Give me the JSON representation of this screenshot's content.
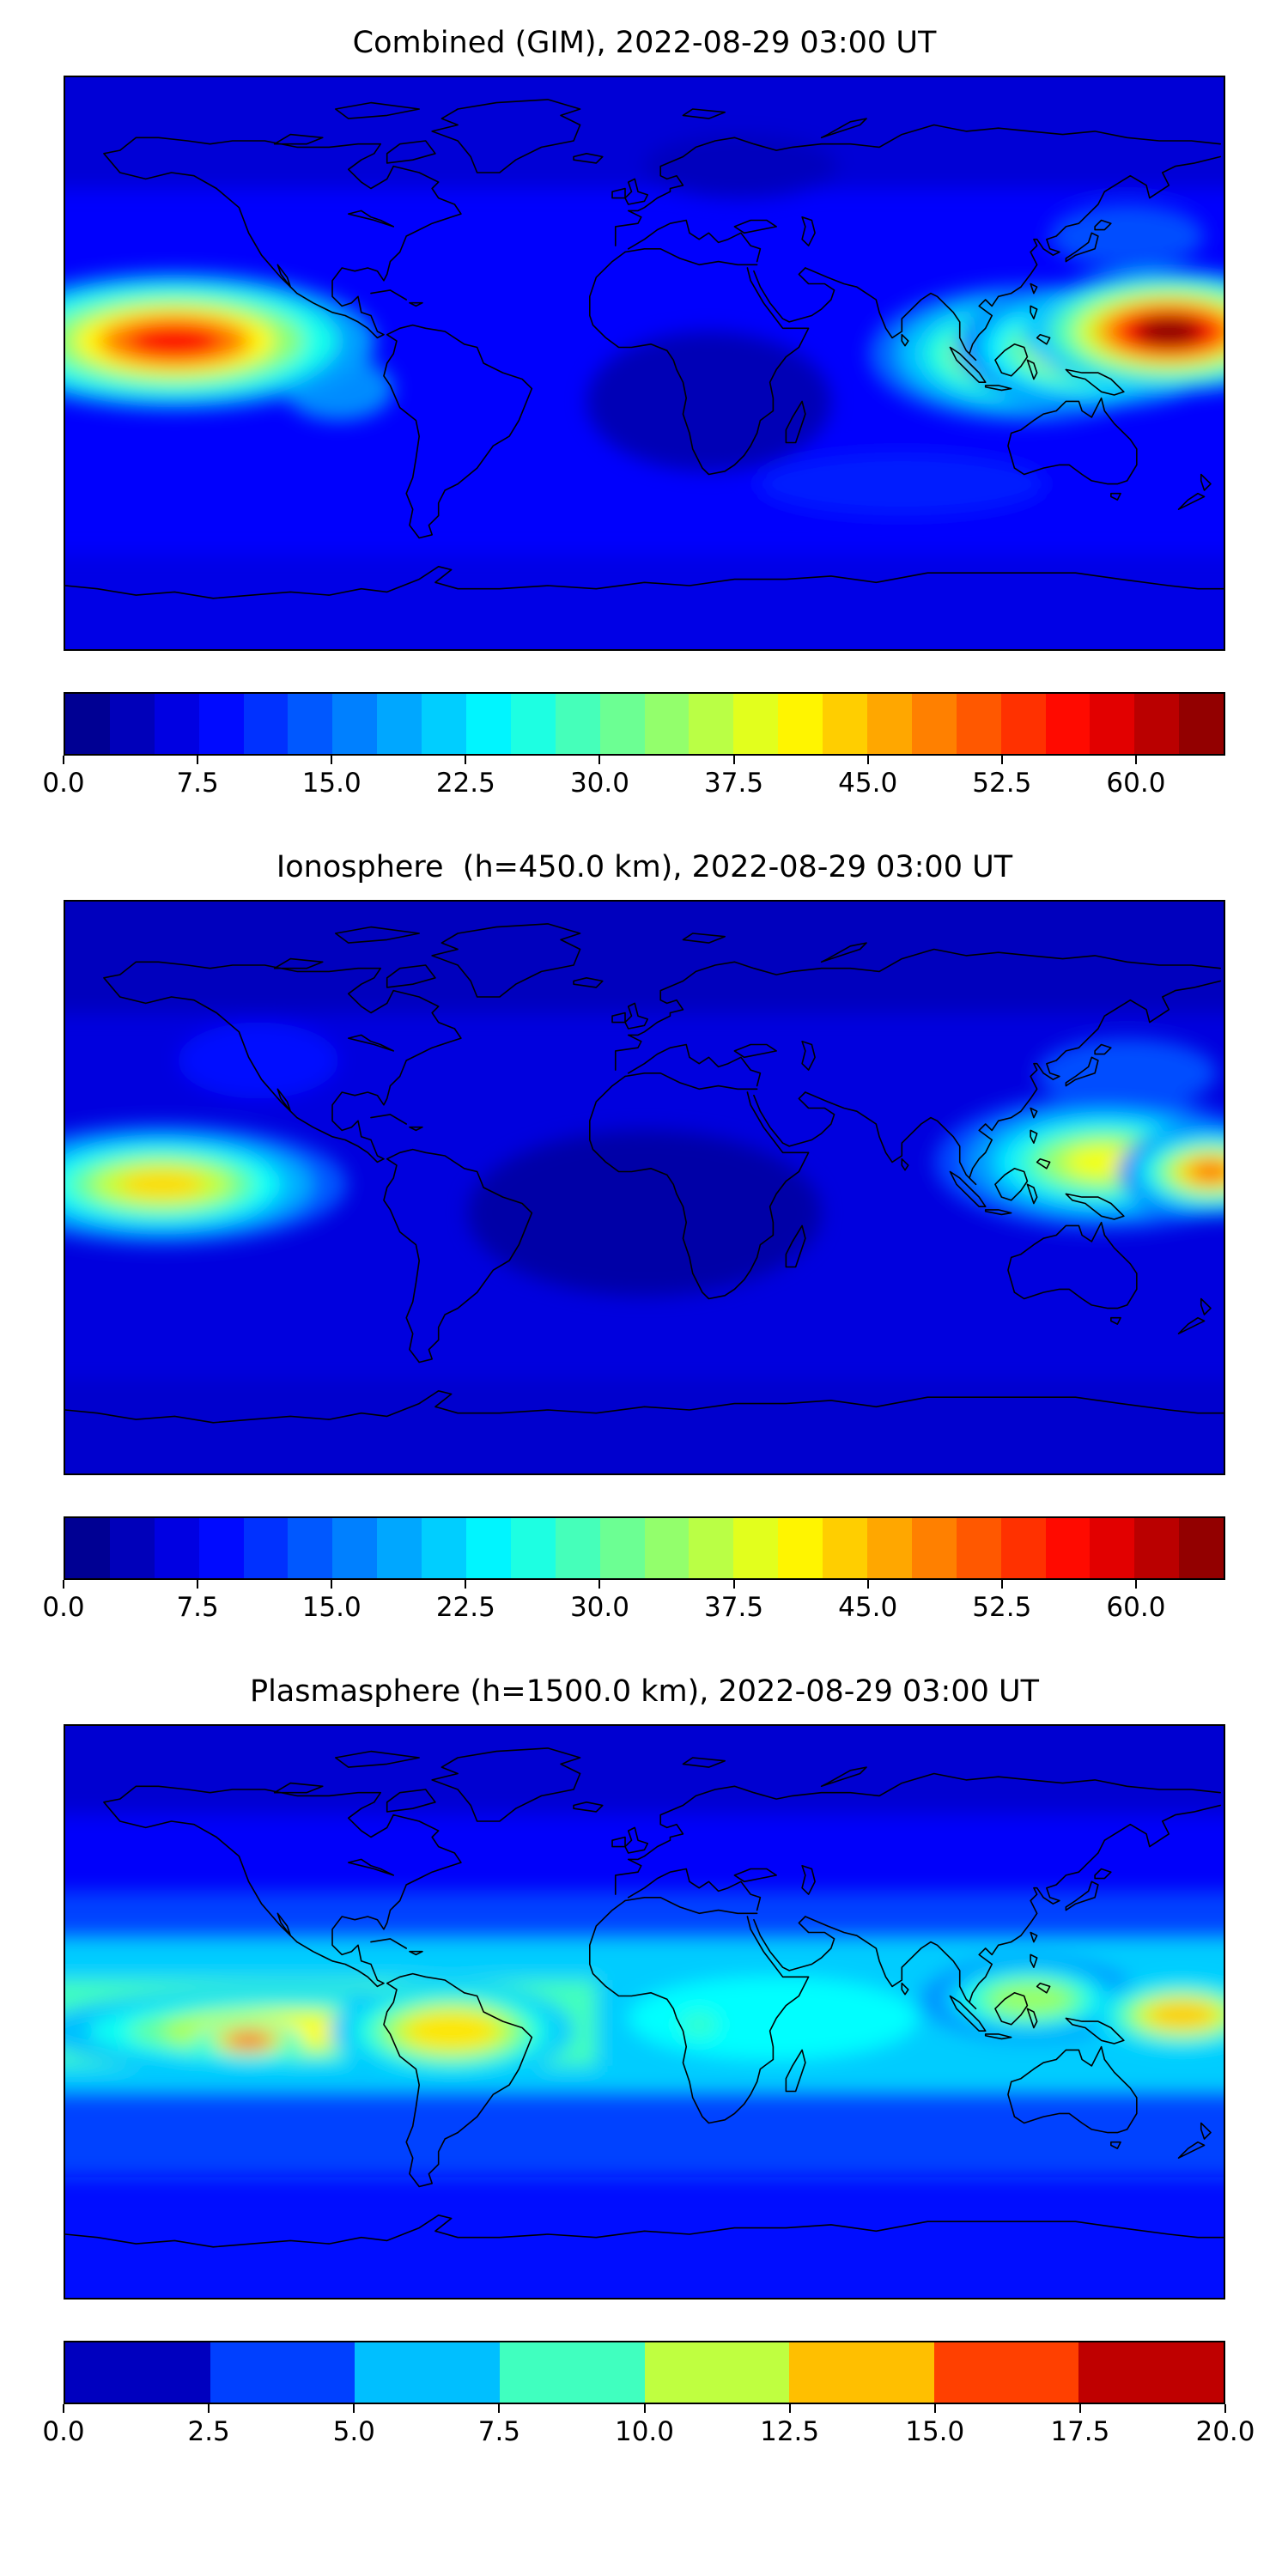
{
  "figure": {
    "background": "#ffffff",
    "coastline_color": "#000000",
    "frame_color": "#000000",
    "palette": {
      "name": "jet",
      "low": "#000080",
      "blue": "#0000ff",
      "cyan": "#00ffff",
      "green": "#7cff79",
      "yellow": "#ffff00",
      "orange": "#ff7f00",
      "red": "#ff0000",
      "high": "#800000"
    }
  },
  "chart_data": [
    {
      "type": "heatmap",
      "title": "Combined (GIM), 2022-08-29 03:00 UT",
      "projection": "equirectangular",
      "lon_range": [
        -180,
        180
      ],
      "lat_range": [
        -90,
        90
      ],
      "colorbar": {
        "vmin": 0.0,
        "vmax": 65.0,
        "level_step": 2.5,
        "tick_values": [
          0.0,
          7.5,
          15.0,
          22.5,
          30.0,
          37.5,
          45.0,
          52.5,
          60.0
        ],
        "tick_labels": [
          "0.0",
          "7.5",
          "15.0",
          "22.5",
          "30.0",
          "37.5",
          "45.0",
          "52.5",
          "60.0"
        ],
        "orientation": "horizontal"
      },
      "map": {
        "background_value": 8,
        "regions": [
          {
            "shape": "rect",
            "lon": [
              -180,
              180
            ],
            "lat": [
              55,
              90
            ],
            "value": 5.5
          },
          {
            "shape": "rect",
            "lon": [
              -180,
              180
            ],
            "lat": [
              -90,
              -60
            ],
            "value": 6.5
          },
          {
            "shape": "ellipse",
            "lon": 20,
            "lat": -12,
            "rx": 38,
            "ry": 22,
            "value": 3.5
          },
          {
            "shape": "ellipse",
            "lon": 30,
            "lat": 62,
            "rx": 30,
            "ry": 10,
            "value": 4
          },
          {
            "shape": "ellipse",
            "lon": -95,
            "lat": -8,
            "rx": 17,
            "ry": 10,
            "value": 17
          },
          {
            "shape": "ellipse",
            "lon": 150,
            "lat": 40,
            "rx": 24,
            "ry": 10,
            "value": 13
          },
          {
            "shape": "ellipse",
            "lon": 80,
            "lat": -38,
            "rx": 45,
            "ry": 10,
            "value": 10
          }
        ],
        "hotspots": [
          {
            "lon": -146,
            "lat": 7,
            "peak": 57,
            "rx": 26,
            "ry": 9
          },
          {
            "lon": 118,
            "lat": 3,
            "peak": 46,
            "rx": 20,
            "ry": 9
          },
          {
            "lon": 140,
            "lat": 5,
            "peak": 52,
            "rx": 18,
            "ry": 8
          },
          {
            "lon": 163,
            "lat": 10,
            "peak": 65,
            "rx": 19,
            "ry": 8
          }
        ]
      }
    },
    {
      "type": "heatmap",
      "title": "Ionosphere  (h=450.0 km), 2022-08-29 03:00 UT",
      "projection": "equirectangular",
      "lon_range": [
        -180,
        180
      ],
      "lat_range": [
        -90,
        90
      ],
      "colorbar": {
        "vmin": 0.0,
        "vmax": 65.0,
        "level_step": 2.5,
        "tick_values": [
          0.0,
          7.5,
          15.0,
          22.5,
          30.0,
          37.5,
          45.0,
          52.5,
          60.0
        ],
        "tick_labels": [
          "0.0",
          "7.5",
          "15.0",
          "22.5",
          "30.0",
          "37.5",
          "45.0",
          "52.5",
          "60.0"
        ],
        "orientation": "horizontal"
      },
      "map": {
        "background_value": 6,
        "regions": [
          {
            "shape": "rect",
            "lon": [
              -180,
              180
            ],
            "lat": [
              55,
              90
            ],
            "value": 4
          },
          {
            "shape": "rect",
            "lon": [
              -180,
              180
            ],
            "lat": [
              -90,
              -60
            ],
            "value": 5
          },
          {
            "shape": "ellipse",
            "lon": 0,
            "lat": -8,
            "rx": 55,
            "ry": 26,
            "value": 2.5
          },
          {
            "shape": "ellipse",
            "lon": 150,
            "lat": 36,
            "rx": 28,
            "ry": 11,
            "value": 13
          },
          {
            "shape": "ellipse",
            "lon": -120,
            "lat": 40,
            "rx": 25,
            "ry": 12,
            "value": 9
          }
        ],
        "hotspots": [
          {
            "lon": -150,
            "lat": 1,
            "peak": 43,
            "rx": 24,
            "ry": 8
          },
          {
            "lon": 143,
            "lat": 8,
            "peak": 40,
            "rx": 22,
            "ry": 9
          },
          {
            "lon": 176,
            "lat": 5,
            "peak": 50,
            "rx": 12,
            "ry": 6
          }
        ]
      }
    },
    {
      "type": "heatmap",
      "title": "Plasmasphere (h=1500.0 km), 2022-08-29 03:00 UT",
      "projection": "equirectangular",
      "lon_range": [
        -180,
        180
      ],
      "lat_range": [
        -90,
        90
      ],
      "colorbar": {
        "vmin": 0.0,
        "vmax": 20.0,
        "level_step": 2.5,
        "tick_values": [
          0.0,
          2.5,
          5.0,
          7.5,
          10.0,
          12.5,
          15.0,
          17.5,
          20.0
        ],
        "tick_labels": [
          "0.0",
          "2.5",
          "5.0",
          "7.5",
          "10.0",
          "12.5",
          "15.0",
          "17.5",
          "20.0"
        ],
        "orientation": "horizontal"
      },
      "map": {
        "background_value": 3.8,
        "regions": [
          {
            "shape": "rect",
            "lon": [
              -180,
              180
            ],
            "lat": [
              38,
              90
            ],
            "value": 2.4
          },
          {
            "shape": "rect",
            "lon": [
              -180,
              180
            ],
            "lat": [
              62,
              90
            ],
            "value": 1.6
          },
          {
            "shape": "rect",
            "lon": [
              -180,
              180
            ],
            "lat": [
              -90,
              -52
            ],
            "value": 2.8
          },
          {
            "shape": "rect",
            "lon": [
              -180,
              180
            ],
            "lat": [
              -26,
              24
            ],
            "value": 6.5
          },
          {
            "shape": "rect",
            "lon": [
              -180,
              -15
            ],
            "lat": [
              -17,
              10
            ],
            "value": 8.8
          },
          {
            "shape": "ellipse",
            "lon": 40,
            "lat": -2,
            "rx": 45,
            "ry": 13,
            "value": 7.5
          },
          {
            "shape": "ellipse",
            "lon": 17,
            "lat": -4,
            "rx": 6,
            "ry": 4,
            "value": 8.5
          }
        ],
        "hotspots": [
          {
            "lon": -110,
            "lat": -6,
            "peak": 12.5,
            "rx": 42,
            "ry": 7
          },
          {
            "lon": 120,
            "lat": 4,
            "peak": 10.5,
            "rx": 18,
            "ry": 7
          },
          {
            "lon": -60,
            "lat": -6,
            "peak": 13,
            "rx": 20,
            "ry": 8
          },
          {
            "lon": 167,
            "lat": -1,
            "peak": 13.5,
            "rx": 15,
            "ry": 6
          },
          {
            "lon": -123,
            "lat": -9,
            "peak": 16,
            "rx": 9,
            "ry": 3.2
          }
        ]
      }
    }
  ]
}
